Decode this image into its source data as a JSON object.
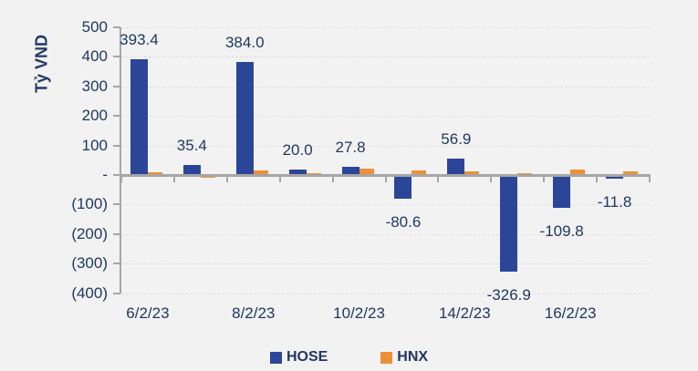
{
  "chart_data": {
    "type": "bar",
    "y_axis": {
      "label": "Tỷ VND",
      "range": [
        -400,
        500
      ],
      "tick_interval": 100,
      "number_format": "accounting: zero shown as '-', negatives in parentheses",
      "ticks": [
        {
          "label": "500",
          "value": 500
        },
        {
          "label": "400",
          "value": 400
        },
        {
          "label": "300",
          "value": 300
        },
        {
          "label": "200",
          "value": 200
        },
        {
          "label": "100",
          "value": 100
        },
        {
          "label": "-",
          "value": 0
        },
        {
          "label": "(100)",
          "value": -100
        },
        {
          "label": "(200)",
          "value": -200
        },
        {
          "label": "(300)",
          "value": -300
        },
        {
          "label": "(400)",
          "value": -400
        }
      ]
    },
    "x_axis": {
      "group_count": 10,
      "tick_labels": [
        {
          "group_index": 0,
          "label": "6/2/23"
        },
        {
          "group_index": 2,
          "label": "8/2/23"
        },
        {
          "group_index": 4,
          "label": "10/2/23"
        },
        {
          "group_index": 6,
          "label": "14/2/23"
        },
        {
          "group_index": 8,
          "label": "16/2/23"
        }
      ]
    },
    "series": [
      {
        "name": "HOSE",
        "color": "#2B4699",
        "values": [
          393.4,
          35.4,
          384.0,
          20.0,
          27.8,
          -80.6,
          56.9,
          -326.9,
          -109.8,
          -11.8
        ],
        "data_labels": [
          "393.4",
          "35.4",
          "384.0",
          "20.0",
          "27.8",
          "-80.6",
          "56.9",
          "-326.9",
          "-109.8",
          "-11.8"
        ]
      },
      {
        "name": "HNX",
        "color": "#EC9138",
        "values": [
          9,
          -9,
          15,
          6,
          22,
          15,
          12,
          5,
          18,
          11
        ],
        "data_labels": []
      }
    ],
    "legend": {
      "position": "bottom",
      "items": [
        {
          "label": "HOSE",
          "color": "#2B4699"
        },
        {
          "label": "HNX",
          "color": "#EC9138"
        }
      ]
    },
    "grid": "horizontal dashed",
    "colors": {
      "background": "#F2F2F2",
      "text": "#1F3864",
      "axis": "#A6A6A6",
      "gridline": "#E0E0E0"
    }
  }
}
